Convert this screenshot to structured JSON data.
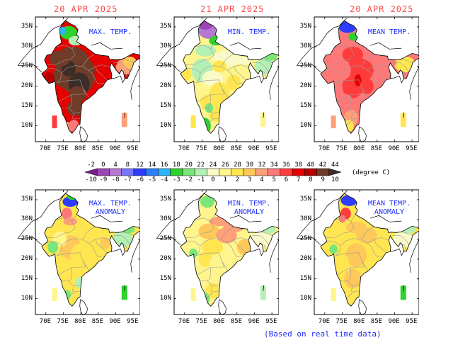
{
  "dates": [
    "20 APR 2025",
    "21 APR 2025",
    "20 APR 2025"
  ],
  "panels": [
    {
      "title": "MAX. TEMP.",
      "scheme": "max"
    },
    {
      "title": "MIN. TEMP.",
      "scheme": "min"
    },
    {
      "title": "MEAN TEMP.",
      "scheme": "mean"
    },
    {
      "title": "MAX. TEMP.\nANOMALY",
      "scheme": "anom1"
    },
    {
      "title": "MIN. TEMP.\nANOMALY",
      "scheme": "anom2"
    },
    {
      "title": "MEAN TEMP.\nANOMALY",
      "scheme": "anom3"
    }
  ],
  "lat_labels": [
    "35N",
    "30N",
    "25N",
    "20N",
    "15N",
    "10N"
  ],
  "lon_labels": [
    "70E",
    "75E",
    "80E",
    "85E",
    "90E",
    "95E"
  ],
  "colorbar": {
    "temp_labels": [
      "-2",
      "0",
      "4",
      "8",
      "12",
      "14",
      "16",
      "18",
      "20",
      "22",
      "24",
      "26",
      "28",
      "30",
      "32",
      "34",
      "36",
      "38",
      "40",
      "42",
      "44"
    ],
    "anom_labels": [
      "-10",
      "-9",
      "-8",
      "-7",
      "-6",
      "-5",
      "-4",
      "-3",
      "-2",
      "-1",
      "0",
      "1",
      "2",
      "3",
      "4",
      "5",
      "6",
      "7",
      "8",
      "9",
      "10"
    ],
    "unit": "(degree C)",
    "colors": [
      "#7a1e8c",
      "#9b46b4",
      "#b478d2",
      "#7878ff",
      "#2d3cff",
      "#2d7dff",
      "#2db4ff",
      "#2dd22d",
      "#78e678",
      "#b4f0b4",
      "#fafac8",
      "#fff58c",
      "#ffe650",
      "#ffc85a",
      "#ffa078",
      "#ff7878",
      "#ff3c3c",
      "#e60000",
      "#b40000",
      "#6e3c28",
      "#3c2d28"
    ]
  },
  "footer_note": "(Based on real time data)"
}
